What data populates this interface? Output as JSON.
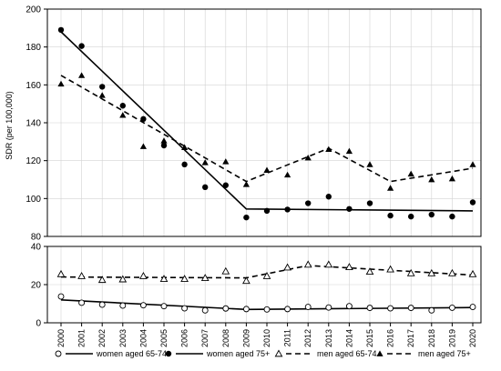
{
  "chart_data": {
    "type": "scatter",
    "ylabel": "SDR (per 100,000)",
    "x_ticks": [
      "2000",
      "2001",
      "2002",
      "2003",
      "2004",
      "2005",
      "2006",
      "2007",
      "2008",
      "2009",
      "2010",
      "2011",
      "2012",
      "2013",
      "2014",
      "2015",
      "2016",
      "2017",
      "2018",
      "2019",
      "2020"
    ],
    "panels": [
      {
        "ylim": [
          80,
          200
        ],
        "y_ticks": [
          80,
          100,
          120,
          140,
          160,
          180,
          200
        ]
      },
      {
        "ylim": [
          0,
          40
        ],
        "y_ticks": [
          0,
          20,
          40
        ]
      }
    ],
    "grid": true,
    "legend_position": "bottom",
    "series": [
      {
        "name": "women aged 65-74",
        "panel": 1,
        "marker": "open-circle",
        "line_style": "solid",
        "values": [
          13.8,
          10.5,
          9.5,
          9.0,
          9.2,
          8.7,
          7.6,
          6.5,
          7.5,
          7.2,
          7.0,
          7.2,
          8.3,
          8.0,
          8.7,
          7.8,
          7.6,
          7.8,
          6.5,
          7.9,
          8.3
        ],
        "trend": [
          [
            2000,
            12.0
          ],
          [
            2009,
            7.0
          ],
          [
            2020,
            8.0
          ]
        ]
      },
      {
        "name": "women aged 75+",
        "panel": 0,
        "marker": "filled-circle",
        "line_style": "solid",
        "values": [
          189,
          180.5,
          159,
          149,
          142,
          128,
          118,
          106,
          107,
          90,
          93.5,
          94.2,
          97.5,
          101,
          94.5,
          97.5,
          91,
          90.5,
          91.5,
          90.5,
          98
        ],
        "trend": [
          [
            2000,
            188
          ],
          [
            2009,
            94.5
          ],
          [
            2020,
            93.5
          ]
        ]
      },
      {
        "name": "men aged 65-74",
        "panel": 1,
        "marker": "open-triangle",
        "line_style": "dashed",
        "values": [
          25.5,
          24.5,
          22.5,
          22.8,
          24.5,
          23.0,
          23.0,
          23.5,
          27.0,
          22.0,
          24.5,
          29.0,
          30.5,
          30.5,
          29.2,
          26.8,
          28.0,
          26.0,
          26.0,
          26.0,
          25.5
        ],
        "trend": [
          [
            2000,
            24.0
          ],
          [
            2009,
            23.5
          ],
          [
            2012,
            30.0
          ],
          [
            2020,
            25.0
          ]
        ]
      },
      {
        "name": "men aged 75+",
        "panel": 0,
        "marker": "filled-triangle",
        "line_style": "dashed",
        "values": [
          160.5,
          165,
          154.5,
          144,
          127.5,
          130.5,
          127,
          119,
          119.5,
          107.5,
          115,
          112.5,
          121.5,
          126,
          125,
          118,
          105.5,
          113,
          110,
          110.5,
          118
        ],
        "trend": [
          [
            2000,
            165
          ],
          [
            2009,
            109
          ],
          [
            2013,
            126.5
          ],
          [
            2016,
            109
          ],
          [
            2020,
            116
          ]
        ]
      }
    ]
  },
  "colors": {
    "ink": "#000000",
    "grid": "#d3d3d3",
    "background": "#ffffff"
  }
}
